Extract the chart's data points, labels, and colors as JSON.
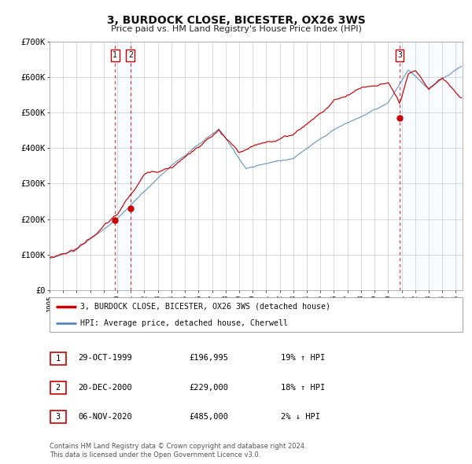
{
  "title": "3, BURDOCK CLOSE, BICESTER, OX26 3WS",
  "subtitle": "Price paid vs. HM Land Registry's House Price Index (HPI)",
  "ylim": [
    0,
    700000
  ],
  "yticks": [
    0,
    100000,
    200000,
    300000,
    400000,
    500000,
    600000,
    700000
  ],
  "ytick_labels": [
    "£0",
    "£100K",
    "£200K",
    "£300K",
    "£400K",
    "£500K",
    "£600K",
    "£700K"
  ],
  "xmin_year": 1995.0,
  "xmax_year": 2025.5,
  "xticks": [
    1995,
    1996,
    1997,
    1998,
    1999,
    2000,
    2001,
    2002,
    2003,
    2004,
    2005,
    2006,
    2007,
    2008,
    2009,
    2010,
    2011,
    2012,
    2013,
    2014,
    2015,
    2016,
    2017,
    2018,
    2019,
    2020,
    2021,
    2022,
    2023,
    2024,
    2025
  ],
  "red_line_color": "#cc0000",
  "blue_line_color": "#5588bb",
  "shade_color": "#ddeeff",
  "grid_color": "#cccccc",
  "bg_color": "#ffffff",
  "sale_points": [
    {
      "label": "1",
      "date_x": 1999.83,
      "price": 196995,
      "shade_end": 2001.0
    },
    {
      "label": "2",
      "date_x": 2000.97,
      "price": 229000,
      "shade_end": 2001.5
    },
    {
      "label": "3",
      "date_x": 2020.85,
      "price": 485000,
      "shade_end": 2025.5
    }
  ],
  "legend_line1": "3, BURDOCK CLOSE, BICESTER, OX26 3WS (detached house)",
  "legend_line2": "HPI: Average price, detached house, Cherwell",
  "table_entries": [
    {
      "num": "1",
      "date": "29-OCT-1999",
      "price": "£196,995",
      "hpi": "19% ↑ HPI"
    },
    {
      "num": "2",
      "date": "20-DEC-2000",
      "price": "£229,000",
      "hpi": "18% ↑ HPI"
    },
    {
      "num": "3",
      "date": "06-NOV-2020",
      "price": "£485,000",
      "hpi": "2% ↓ HPI"
    }
  ],
  "footer_line1": "Contains HM Land Registry data © Crown copyright and database right 2024.",
  "footer_line2": "This data is licensed under the Open Government Licence v3.0."
}
